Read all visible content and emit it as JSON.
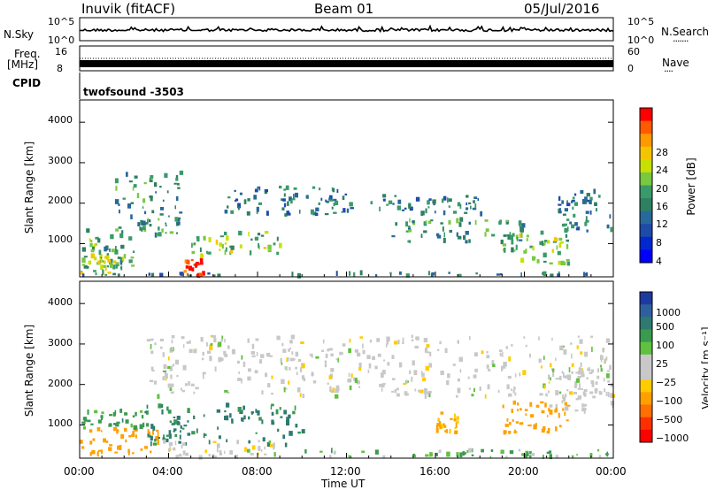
{
  "header": {
    "station": "Inuvik (fitACF)",
    "beam": "Beam 01",
    "date": "05/Jul/2016"
  },
  "noise_panel": {
    "left_label": "N.Sky",
    "left_ticks": [
      "10^5",
      "10^0"
    ],
    "right_ticks": [
      "10^5",
      "10^0"
    ],
    "right_label": "N.Search",
    "right_legend_dots": "·······"
  },
  "freq_panel": {
    "left_label_1": "Freq.",
    "left_label_2": "[MHz]",
    "left_ticks": [
      "16",
      "8"
    ],
    "right_ticks": [
      "60",
      "0"
    ],
    "right_label": "Nave",
    "right_legend_dots": "····"
  },
  "cpid_panel": {
    "label": "CPID",
    "program": "twofsound -3503"
  },
  "power_panel": {
    "ylabel": "Slant Range [km]",
    "yticks": [
      "4000",
      "3000",
      "2000",
      "1000"
    ],
    "colorbar_label": "Power [dB]",
    "colorbar_ticks": [
      "28",
      "24",
      "20",
      "16",
      "12",
      "8",
      "4"
    ],
    "colorbar_colors": [
      "#ff0000",
      "#ff5a00",
      "#ff9900",
      "#f5c400",
      "#c8e000",
      "#78c840",
      "#3a9a6a",
      "#2e8060",
      "#28689a",
      "#1e4aaa",
      "#0028d0",
      "#0000ff"
    ]
  },
  "velocity_panel": {
    "ylabel": "Slant Range [km]",
    "yticks": [
      "4000",
      "3000",
      "2000",
      "1000"
    ],
    "colorbar_label": "Velocity [m s⁻¹]",
    "colorbar_ticks": [
      "1000",
      "500",
      "100",
      "25",
      "−25",
      "−100",
      "−500",
      "−1000"
    ],
    "colorbar_colors": [
      "#1e3aa0",
      "#2e60a0",
      "#2e7a70",
      "#3a9a50",
      "#60c040",
      "#c8c8c8",
      "#c8c8c8",
      "#ffcc00",
      "#ffa000",
      "#ff7000",
      "#ff3000",
      "#ff0000"
    ]
  },
  "x_axis": {
    "ticks": [
      "00:00",
      "04:00",
      "08:00",
      "12:00",
      "16:00",
      "20:00",
      "00:00"
    ],
    "label": "Time UT"
  },
  "chart_data": [
    {
      "type": "heatmap",
      "title": "",
      "xlabel": "Time UT",
      "ylabel": "Slant Range [km]",
      "x_unit": "hours",
      "xlim": [
        0,
        24
      ],
      "ylim": [
        180,
        4550
      ],
      "colorbar": {
        "label": "Power [dB]",
        "range": [
          0,
          30
        ]
      },
      "features": [
        {
          "t0": 0.0,
          "t1": 2.5,
          "r0": 400,
          "r1": 1400,
          "value": 14
        },
        {
          "t0": 0.0,
          "t1": 2.0,
          "r0": 250,
          "r1": 700,
          "value": 18
        },
        {
          "t0": 1.5,
          "t1": 4.5,
          "r0": 1200,
          "r1": 2800,
          "value": 12
        },
        {
          "t0": 4.5,
          "t1": 5.5,
          "r0": 200,
          "r1": 600,
          "value": 28
        },
        {
          "t0": 5.0,
          "t1": 9.0,
          "r0": 700,
          "r1": 1300,
          "value": 16
        },
        {
          "t0": 6.5,
          "t1": 12.0,
          "r0": 1700,
          "r1": 2400,
          "value": 10
        },
        {
          "t0": 11.0,
          "t1": 18.0,
          "r0": 1700,
          "r1": 2200,
          "value": 10
        },
        {
          "t0": 14.0,
          "t1": 20.0,
          "r0": 1000,
          "r1": 1600,
          "value": 12
        },
        {
          "t0": 19.0,
          "t1": 22.0,
          "r0": 500,
          "r1": 1300,
          "value": 16
        },
        {
          "t0": 21.5,
          "t1": 24.0,
          "r0": 1300,
          "r1": 2300,
          "value": 10
        },
        {
          "t0": 0.0,
          "t1": 24.0,
          "r0": 200,
          "r1": 280,
          "value": 10
        }
      ]
    },
    {
      "type": "heatmap",
      "title": "",
      "xlabel": "Time UT",
      "ylabel": "Slant Range [km]",
      "x_unit": "hours",
      "xlim": [
        0,
        24
      ],
      "ylim": [
        180,
        4550
      ],
      "colorbar": {
        "label": "Velocity [m s⁻¹]",
        "range": [
          -1000,
          1000
        ]
      },
      "features": [
        {
          "t0": 0.0,
          "t1": 3.5,
          "r0": 250,
          "r1": 900,
          "value": -200
        },
        {
          "t0": 0.0,
          "t1": 3.0,
          "r0": 900,
          "r1": 1400,
          "value": 100
        },
        {
          "t0": 3.0,
          "t1": 10.0,
          "r0": 500,
          "r1": 1500,
          "value": 200
        },
        {
          "t0": 3.5,
          "t1": 9.0,
          "r0": 200,
          "r1": 600,
          "value": 0
        },
        {
          "t0": 3.0,
          "t1": 24.0,
          "r0": 1700,
          "r1": 3200,
          "value": 0
        },
        {
          "t0": 9.0,
          "t1": 24.0,
          "r0": 200,
          "r1": 400,
          "value": 50
        },
        {
          "t0": 16.0,
          "t1": 17.0,
          "r0": 800,
          "r1": 1300,
          "value": -100
        },
        {
          "t0": 19.0,
          "t1": 22.0,
          "r0": 800,
          "r1": 1600,
          "value": -200
        },
        {
          "t0": 21.0,
          "t1": 24.0,
          "r0": 1300,
          "r1": 2400,
          "value": 0
        }
      ]
    }
  ]
}
